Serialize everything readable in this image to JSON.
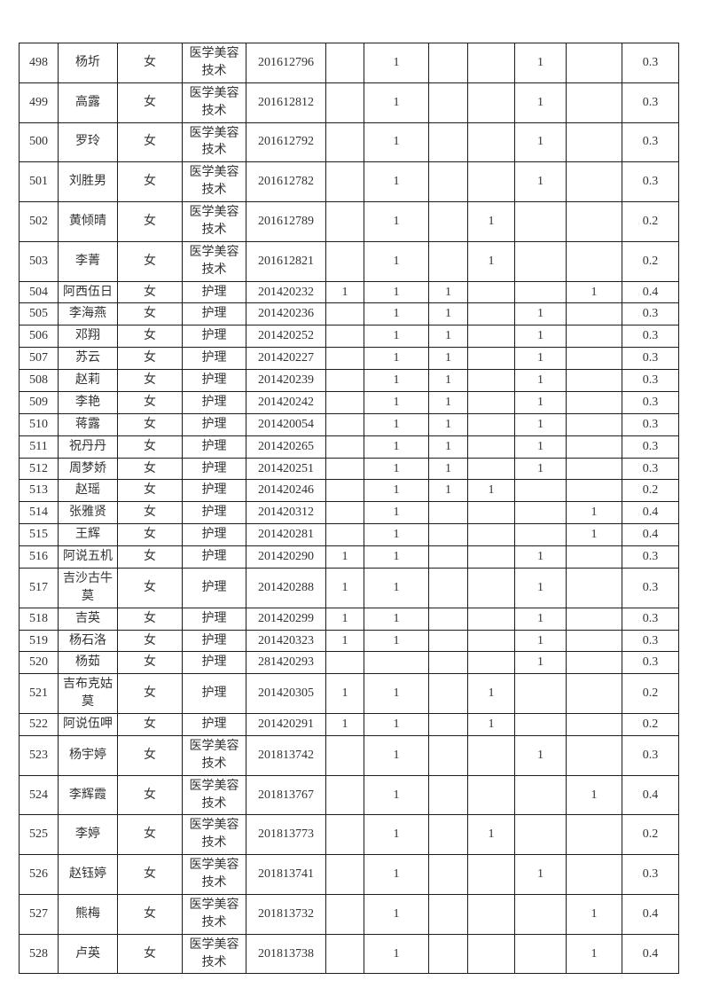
{
  "page": {
    "kind": "scanned student roster table (continuation page, no header row visible)",
    "background_color": "#ffffff",
    "text_color": "#333333",
    "border_color": "#1c1c1c"
  },
  "table": {
    "visible_row_range": "498-528",
    "rows": [
      [
        "498",
        "杨圻",
        "女",
        "医学美容技术",
        "201612796",
        "",
        "1",
        "",
        "",
        "1",
        "",
        "0.3"
      ],
      [
        "499",
        "高露",
        "女",
        "医学美容技术",
        "201612812",
        "",
        "1",
        "",
        "",
        "1",
        "",
        "0.3"
      ],
      [
        "500",
        "罗玲",
        "女",
        "医学美容技术",
        "201612792",
        "",
        "1",
        "",
        "",
        "1",
        "",
        "0.3"
      ],
      [
        "501",
        "刘胜男",
        "女",
        "医学美容技术",
        "201612782",
        "",
        "1",
        "",
        "",
        "1",
        "",
        "0.3"
      ],
      [
        "502",
        "黄倾晴",
        "女",
        "医学美容技术",
        "201612789",
        "",
        "1",
        "",
        "1",
        "",
        "",
        "0.2"
      ],
      [
        "503",
        "李菁",
        "女",
        "医学美容技术",
        "201612821",
        "",
        "1",
        "",
        "1",
        "",
        "",
        "0.2"
      ],
      [
        "504",
        "阿西伍日",
        "女",
        "护理",
        "201420232",
        "1",
        "1",
        "1",
        "",
        "",
        "1",
        "0.4"
      ],
      [
        "505",
        "李海燕",
        "女",
        "护理",
        "201420236",
        "",
        "1",
        "1",
        "",
        "1",
        "",
        "0.3"
      ],
      [
        "506",
        "邓翔",
        "女",
        "护理",
        "201420252",
        "",
        "1",
        "1",
        "",
        "1",
        "",
        "0.3"
      ],
      [
        "507",
        "苏云",
        "女",
        "护理",
        "201420227",
        "",
        "1",
        "1",
        "",
        "1",
        "",
        "0.3"
      ],
      [
        "508",
        "赵莉",
        "女",
        "护理",
        "201420239",
        "",
        "1",
        "1",
        "",
        "1",
        "",
        "0.3"
      ],
      [
        "509",
        "李艳",
        "女",
        "护理",
        "201420242",
        "",
        "1",
        "1",
        "",
        "1",
        "",
        "0.3"
      ],
      [
        "510",
        "蒋露",
        "女",
        "护理",
        "201420054",
        "",
        "1",
        "1",
        "",
        "1",
        "",
        "0.3"
      ],
      [
        "511",
        "祝丹丹",
        "女",
        "护理",
        "201420265",
        "",
        "1",
        "1",
        "",
        "1",
        "",
        "0.3"
      ],
      [
        "512",
        "周梦娇",
        "女",
        "护理",
        "201420251",
        "",
        "1",
        "1",
        "",
        "1",
        "",
        "0.3"
      ],
      [
        "513",
        "赵瑶",
        "女",
        "护理",
        "201420246",
        "",
        "1",
        "1",
        "1",
        "",
        "",
        "0.2"
      ],
      [
        "514",
        "张雅贤",
        "女",
        "护理",
        "201420312",
        "",
        "1",
        "",
        "",
        "",
        "1",
        "0.4"
      ],
      [
        "515",
        "王辉",
        "女",
        "护理",
        "201420281",
        "",
        "1",
        "",
        "",
        "",
        "1",
        "0.4"
      ],
      [
        "516",
        "阿说五机",
        "女",
        "护理",
        "201420290",
        "1",
        "1",
        "",
        "",
        "1",
        "",
        "0.3"
      ],
      [
        "517",
        "吉沙古牛莫",
        "女",
        "护理",
        "201420288",
        "1",
        "1",
        "",
        "",
        "1",
        "",
        "0.3"
      ],
      [
        "518",
        "吉英",
        "女",
        "护理",
        "201420299",
        "1",
        "1",
        "",
        "",
        "1",
        "",
        "0.3"
      ],
      [
        "519",
        "杨石洛",
        "女",
        "护理",
        "201420323",
        "1",
        "1",
        "",
        "",
        "1",
        "",
        "0.3"
      ],
      [
        "520",
        "杨茹",
        "女",
        "护理",
        "281420293",
        "",
        "",
        "",
        "",
        "1",
        "",
        "0.3"
      ],
      [
        "521",
        "吉布克姑莫",
        "女",
        "护理",
        "201420305",
        "1",
        "1",
        "",
        "1",
        "",
        "",
        "0.2"
      ],
      [
        "522",
        "阿说伍呷",
        "女",
        "护理",
        "201420291",
        "1",
        "1",
        "",
        "1",
        "",
        "",
        "0.2"
      ],
      [
        "523",
        "杨宇婷",
        "女",
        "医学美容技术",
        "201813742",
        "",
        "1",
        "",
        "",
        "1",
        "",
        "0.3"
      ],
      [
        "524",
        "李辉霞",
        "女",
        "医学美容技术",
        "201813767",
        "",
        "1",
        "",
        "",
        "",
        "1",
        "0.4"
      ],
      [
        "525",
        "李婷",
        "女",
        "医学美容技术",
        "201813773",
        "",
        "1",
        "",
        "1",
        "",
        "",
        "0.2"
      ],
      [
        "526",
        "赵钰婷",
        "女",
        "医学美容技术",
        "201813741",
        "",
        "1",
        "",
        "",
        "1",
        "",
        "0.3"
      ],
      [
        "527",
        "熊梅",
        "女",
        "医学美容技术",
        "201813732",
        "",
        "1",
        "",
        "",
        "",
        "1",
        "0.4"
      ],
      [
        "528",
        "卢英",
        "女",
        "医学美容技术",
        "201813738",
        "",
        "1",
        "",
        "",
        "",
        "1",
        "0.4"
      ]
    ]
  }
}
